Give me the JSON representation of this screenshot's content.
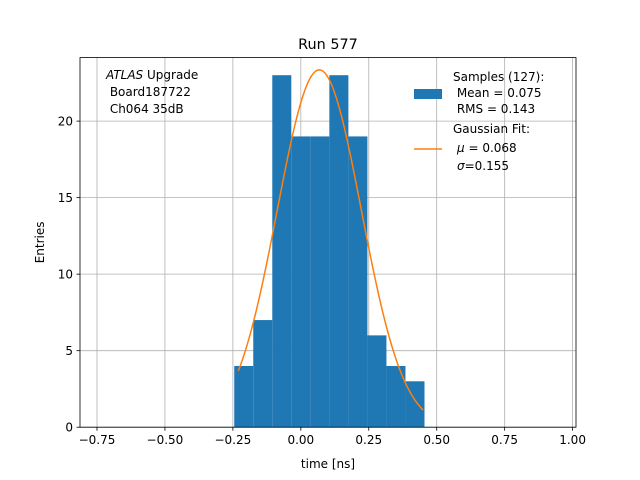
{
  "chart_data": {
    "type": "bar",
    "title": "Run 577",
    "xlabel": "time [ns]",
    "ylabel": "Entries",
    "xlim": [
      -0.8125,
      1.0125
    ],
    "ylim": [
      0,
      24.15
    ],
    "grid": true,
    "xticks": [
      -0.75,
      -0.5,
      -0.25,
      0.0,
      0.25,
      0.5,
      0.75,
      1.0
    ],
    "xtick_labels": [
      "−0.75",
      "−0.50",
      "−0.25",
      "0.00",
      "0.25",
      "0.50",
      "0.75",
      "1.00"
    ],
    "yticks": [
      0,
      5,
      10,
      15,
      20
    ],
    "ytick_labels": [
      "0",
      "5",
      "10",
      "15",
      "20"
    ],
    "histogram": {
      "bin_edges": [
        -0.245,
        -0.175,
        -0.105,
        -0.035,
        0.035,
        0.105,
        0.175,
        0.245,
        0.315,
        0.385,
        0.455
      ],
      "counts": [
        4,
        7,
        23,
        19,
        19,
        23,
        19,
        6,
        4,
        3
      ],
      "color": "#1f77b4"
    },
    "fit": {
      "type": "gaussian",
      "mu": 0.068,
      "sigma": 0.155,
      "amplitude": 23.35,
      "x_range": [
        -0.23,
        0.45
      ],
      "color": "#ff7f0e"
    },
    "annotation": {
      "italic": "ATLAS",
      "line1_rest": " Upgrade",
      "line2": " Board187722",
      "line3": " Ch064 35dB"
    },
    "legend": {
      "placement": "top-right",
      "hist_title": "Samples (127):",
      "hist_mean": " Mean = 0.075",
      "hist_rms": " RMS = 0.143",
      "fit_title": "Gaussian Fit:",
      "fit_mu_symbol": "μ",
      "fit_mu_text": " = 0.068",
      "fit_sigma_symbol": "σ",
      "fit_sigma_text": "=0.155"
    }
  }
}
